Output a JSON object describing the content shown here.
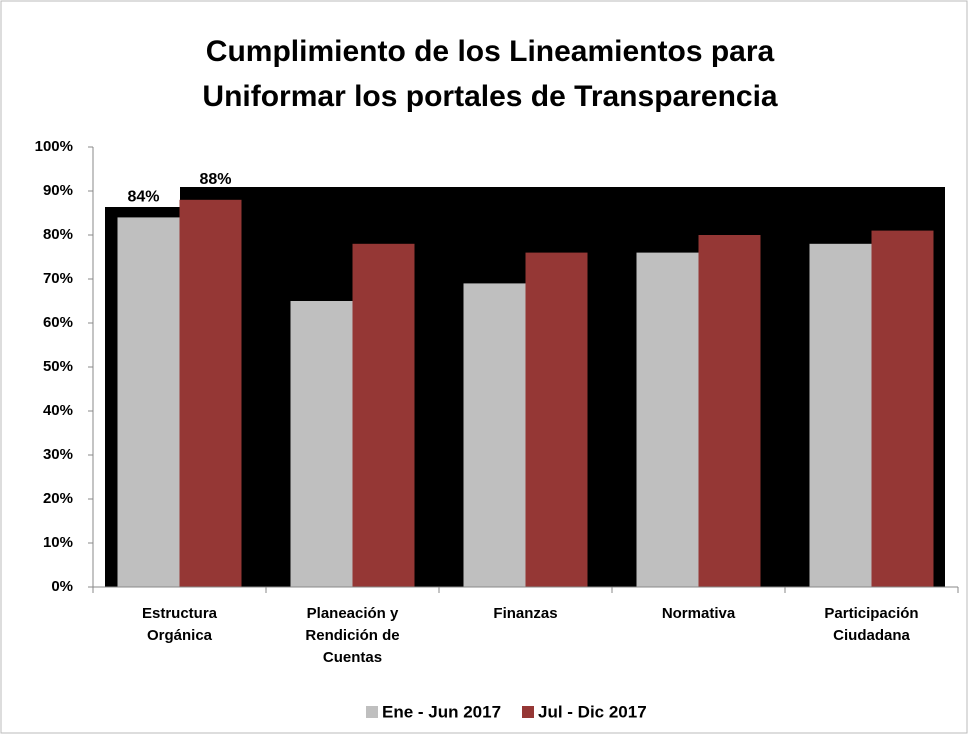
{
  "chart_data": {
    "type": "bar",
    "title": [
      "Cumplimiento de los Lineamientos para",
      "Uniformar los portales de Transparencia"
    ],
    "categories": [
      "Estructura Orgánica",
      "Planeación y Rendición de Cuentas",
      "Finanzas",
      "Normativa",
      "Participación Ciudadana"
    ],
    "series": [
      {
        "name": "Ene - Jun 2017",
        "color": "#bfbfbf",
        "values": [
          84,
          65,
          69,
          76,
          78
        ],
        "value_labels": [
          "84%",
          null,
          null,
          null,
          null
        ]
      },
      {
        "name": "Jul - Dic 2017",
        "color": "#953735",
        "values": [
          88,
          78,
          76,
          80,
          81
        ],
        "value_labels": [
          "88%",
          null,
          null,
          null,
          null
        ]
      }
    ],
    "ylim": [
      0,
      100
    ],
    "yticks": [
      {
        "value": 0,
        "label": "0%"
      },
      {
        "value": 10,
        "label": "10%"
      },
      {
        "value": 20,
        "label": "20%"
      },
      {
        "value": 30,
        "label": "30%"
      },
      {
        "value": 40,
        "label": "40%"
      },
      {
        "value": 50,
        "label": "50%"
      },
      {
        "value": 60,
        "label": "60%"
      },
      {
        "value": 70,
        "label": "70%"
      },
      {
        "value": 80,
        "label": "80%"
      },
      {
        "value": 90,
        "label": "90%"
      },
      {
        "value": 100,
        "label": "100%"
      }
    ],
    "legend": "bottom"
  }
}
